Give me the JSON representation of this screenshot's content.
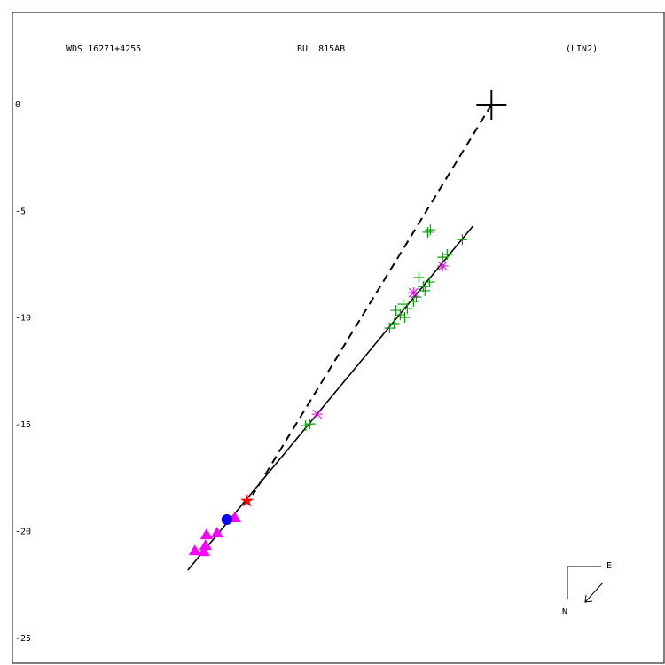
{
  "chart_data": {
    "type": "scatter",
    "title": "WDS 16271+4255",
    "subtitle": "BU  815AB",
    "note": "(LIN2)",
    "compass_labels": [
      "E",
      "N"
    ],
    "xlim": [
      -22.48,
      8.1
    ],
    "ylim": [
      -26.17,
      4.32
    ],
    "yticks": [
      0,
      -5,
      -10,
      -15,
      -20,
      -25
    ],
    "grid": false,
    "series": [
      {
        "marker": "line",
        "color": "#000000",
        "x": [
          -14.25,
          -0.87
        ],
        "values": [
          -21.81,
          -5.69
        ]
      },
      {
        "marker": "dashed",
        "color": "#000000",
        "x": [
          0,
          -11.2
        ],
        "values": [
          0,
          -18.28
        ]
      },
      {
        "marker": "plus",
        "color": "#00a000",
        "x": [
          -8.52,
          -8.72,
          -2.87,
          -2.99,
          -1.37,
          -2.29,
          -2.08,
          -3.41,
          -2.91,
          -3.2,
          -3.12,
          -3.53,
          -3.66,
          -4.15,
          -3.95,
          -4.49,
          -4.28,
          -4.07,
          -4.57,
          -4.78
        ],
        "values": [
          -14.96,
          -15.04,
          -5.86,
          -5.98,
          -6.32,
          -7.15,
          -7.02,
          -8.1,
          -8.31,
          -8.52,
          -8.72,
          -9.02,
          -9.22,
          -9.35,
          -9.56,
          -9.64,
          -9.85,
          -9.97,
          -10.26,
          -10.47
        ]
      },
      {
        "marker": "asterisk",
        "color": "#e000e0",
        "x": [
          -8.18,
          -3.66,
          -2.29
        ],
        "values": [
          -14.5,
          -8.81,
          -7.56
        ]
      },
      {
        "marker": "triangle",
        "color": "#ff00ff",
        "x": [
          -12.05,
          -12.88,
          -13.38,
          -13.42,
          -13.92,
          -13.5
        ],
        "values": [
          -19.36,
          -20.07,
          -20.15,
          -20.65,
          -20.9,
          -20.94
        ]
      },
      {
        "marker": "circle",
        "color": "#0000ff",
        "x": [
          -12.42
        ],
        "values": [
          -19.44
        ]
      },
      {
        "marker": "star",
        "color": "#ff0000",
        "x": [
          -11.47
        ],
        "values": [
          -18.57
        ]
      },
      {
        "marker": "cross",
        "color": "#000000",
        "x": [
          0
        ],
        "values": [
          0
        ]
      }
    ]
  }
}
